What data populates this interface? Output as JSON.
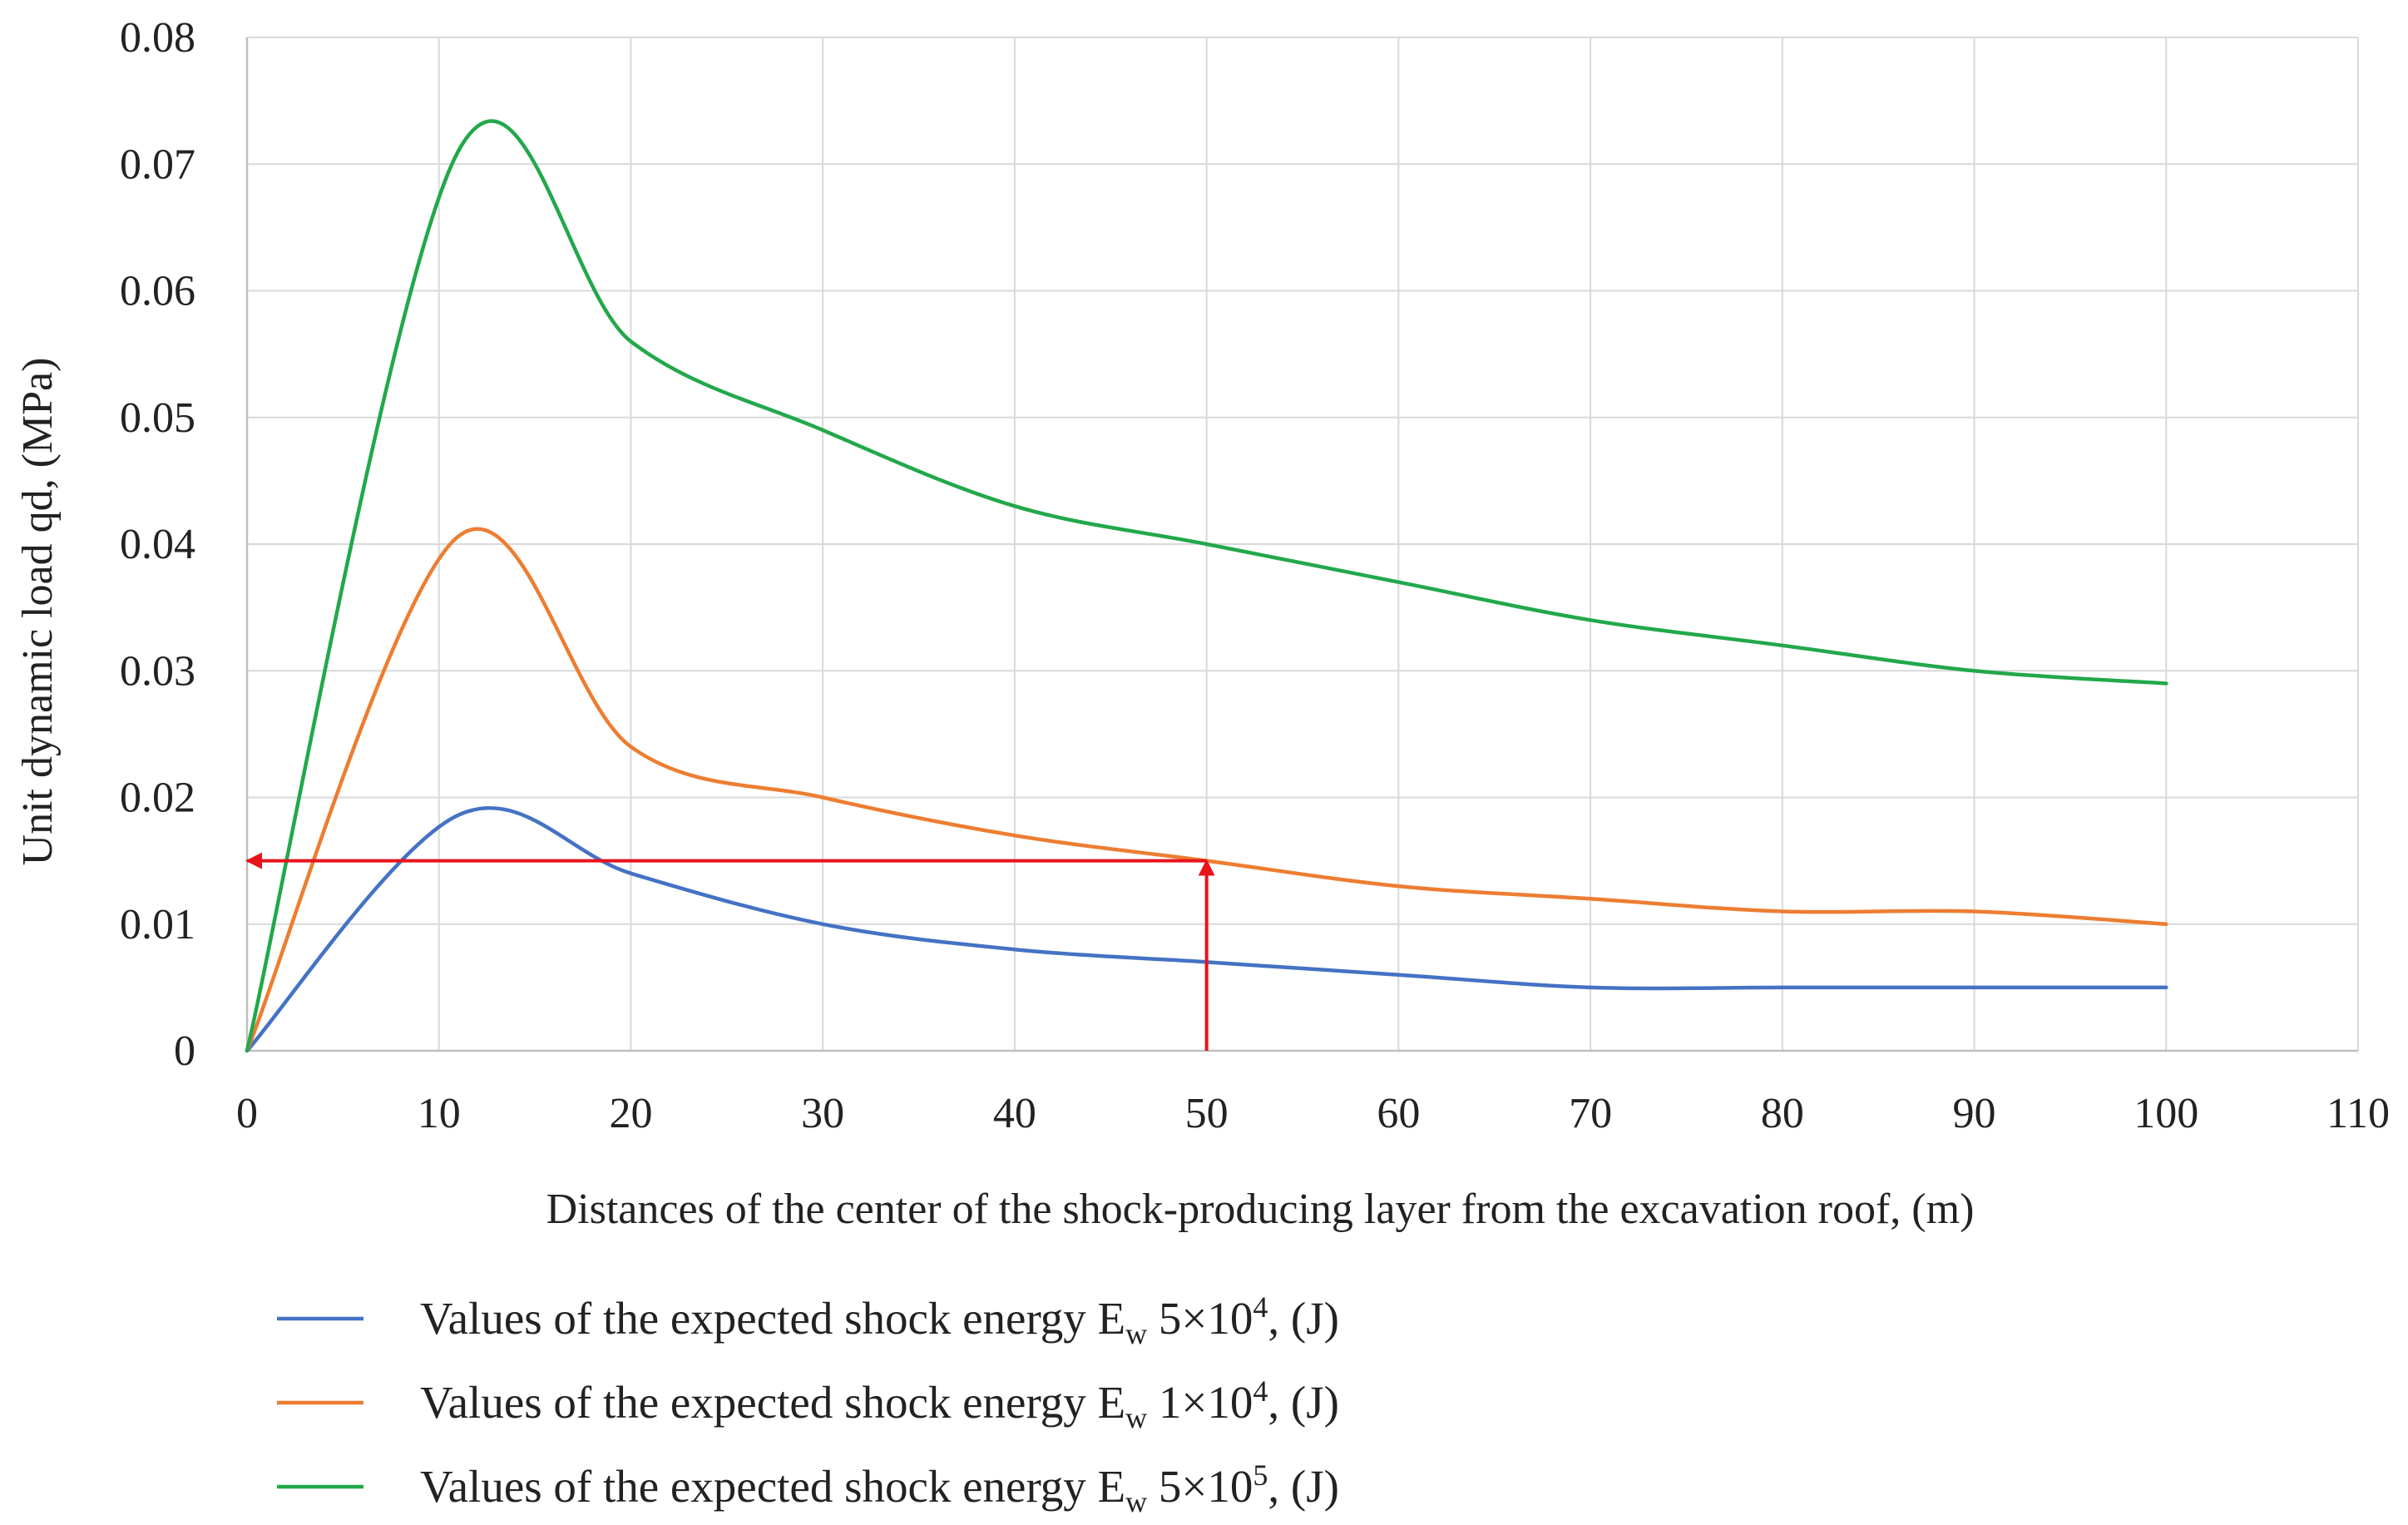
{
  "chart_data": {
    "type": "line",
    "title": "",
    "xlabel": "Distances of the center of the shock-producing layer  from the excavation roof, (m)",
    "ylabel": "Unit dynamic load qd, (MPa)",
    "xlim": [
      0,
      110
    ],
    "ylim": [
      0,
      0.08
    ],
    "xticks": [
      0,
      10,
      20,
      30,
      40,
      50,
      60,
      70,
      80,
      90,
      100,
      110
    ],
    "yticks": [
      "0",
      "0.01",
      "0.02",
      "0.03",
      "0.04",
      "0.05",
      "0.06",
      "0.07",
      "0.08"
    ],
    "grid": true,
    "legend_position": "bottom-left",
    "series": [
      {
        "name": "Values of the expected shock energy Ew 5×10^4, (J)",
        "legend": {
          "prefix": "Values of the expected shock energy E",
          "sub": "w",
          "coef": " 5×10",
          "exp": "4",
          "suffix": ", (J)"
        },
        "color": "#4472c4",
        "points": [
          [
            0,
            0
          ],
          [
            11,
            0.0186
          ],
          [
            20,
            0.014
          ],
          [
            30,
            0.01
          ],
          [
            40,
            0.008
          ],
          [
            50,
            0.007
          ],
          [
            60,
            0.006
          ],
          [
            70,
            0.005
          ],
          [
            80,
            0.005
          ],
          [
            90,
            0.005
          ],
          [
            100,
            0.005
          ]
        ]
      },
      {
        "name": "Values of the expected shock energy Ew 1×10^4, (J)",
        "legend": {
          "prefix": "Values of the expected shock energy E",
          "sub": "w",
          "coef": " 1×10",
          "exp": "4",
          "suffix": ", (J)"
        },
        "color": "#ed7d31",
        "points": [
          [
            0,
            0
          ],
          [
            11,
            0.0406
          ],
          [
            20,
            0.024
          ],
          [
            30,
            0.02
          ],
          [
            40,
            0.017
          ],
          [
            50,
            0.015
          ],
          [
            60,
            0.013
          ],
          [
            70,
            0.012
          ],
          [
            80,
            0.011
          ],
          [
            90,
            0.011
          ],
          [
            100,
            0.01
          ]
        ]
      },
      {
        "name": "Values of the expected shock energy Ew 5×10^5, (J)",
        "legend": {
          "prefix": "Values of the expected shock energy E",
          "sub": "w",
          "coef": " 5×10",
          "exp": "5",
          "suffix": ", (J)"
        },
        "color": "#22a84a",
        "points": [
          [
            0,
            0
          ],
          [
            11,
            0.071
          ],
          [
            20,
            0.056
          ],
          [
            30,
            0.049
          ],
          [
            40,
            0.043
          ],
          [
            50,
            0.04
          ],
          [
            60,
            0.037
          ],
          [
            70,
            0.034
          ],
          [
            80,
            0.032
          ],
          [
            90,
            0.03
          ],
          [
            100,
            0.029
          ]
        ]
      }
    ],
    "annotations": [
      {
        "type": "arrow",
        "color": "#e8141c",
        "from": [
          50,
          0
        ],
        "to": [
          50,
          0.015
        ]
      },
      {
        "type": "arrow",
        "color": "#e8141c",
        "from": [
          50,
          0.015
        ],
        "to": [
          0,
          0.015
        ]
      }
    ]
  }
}
